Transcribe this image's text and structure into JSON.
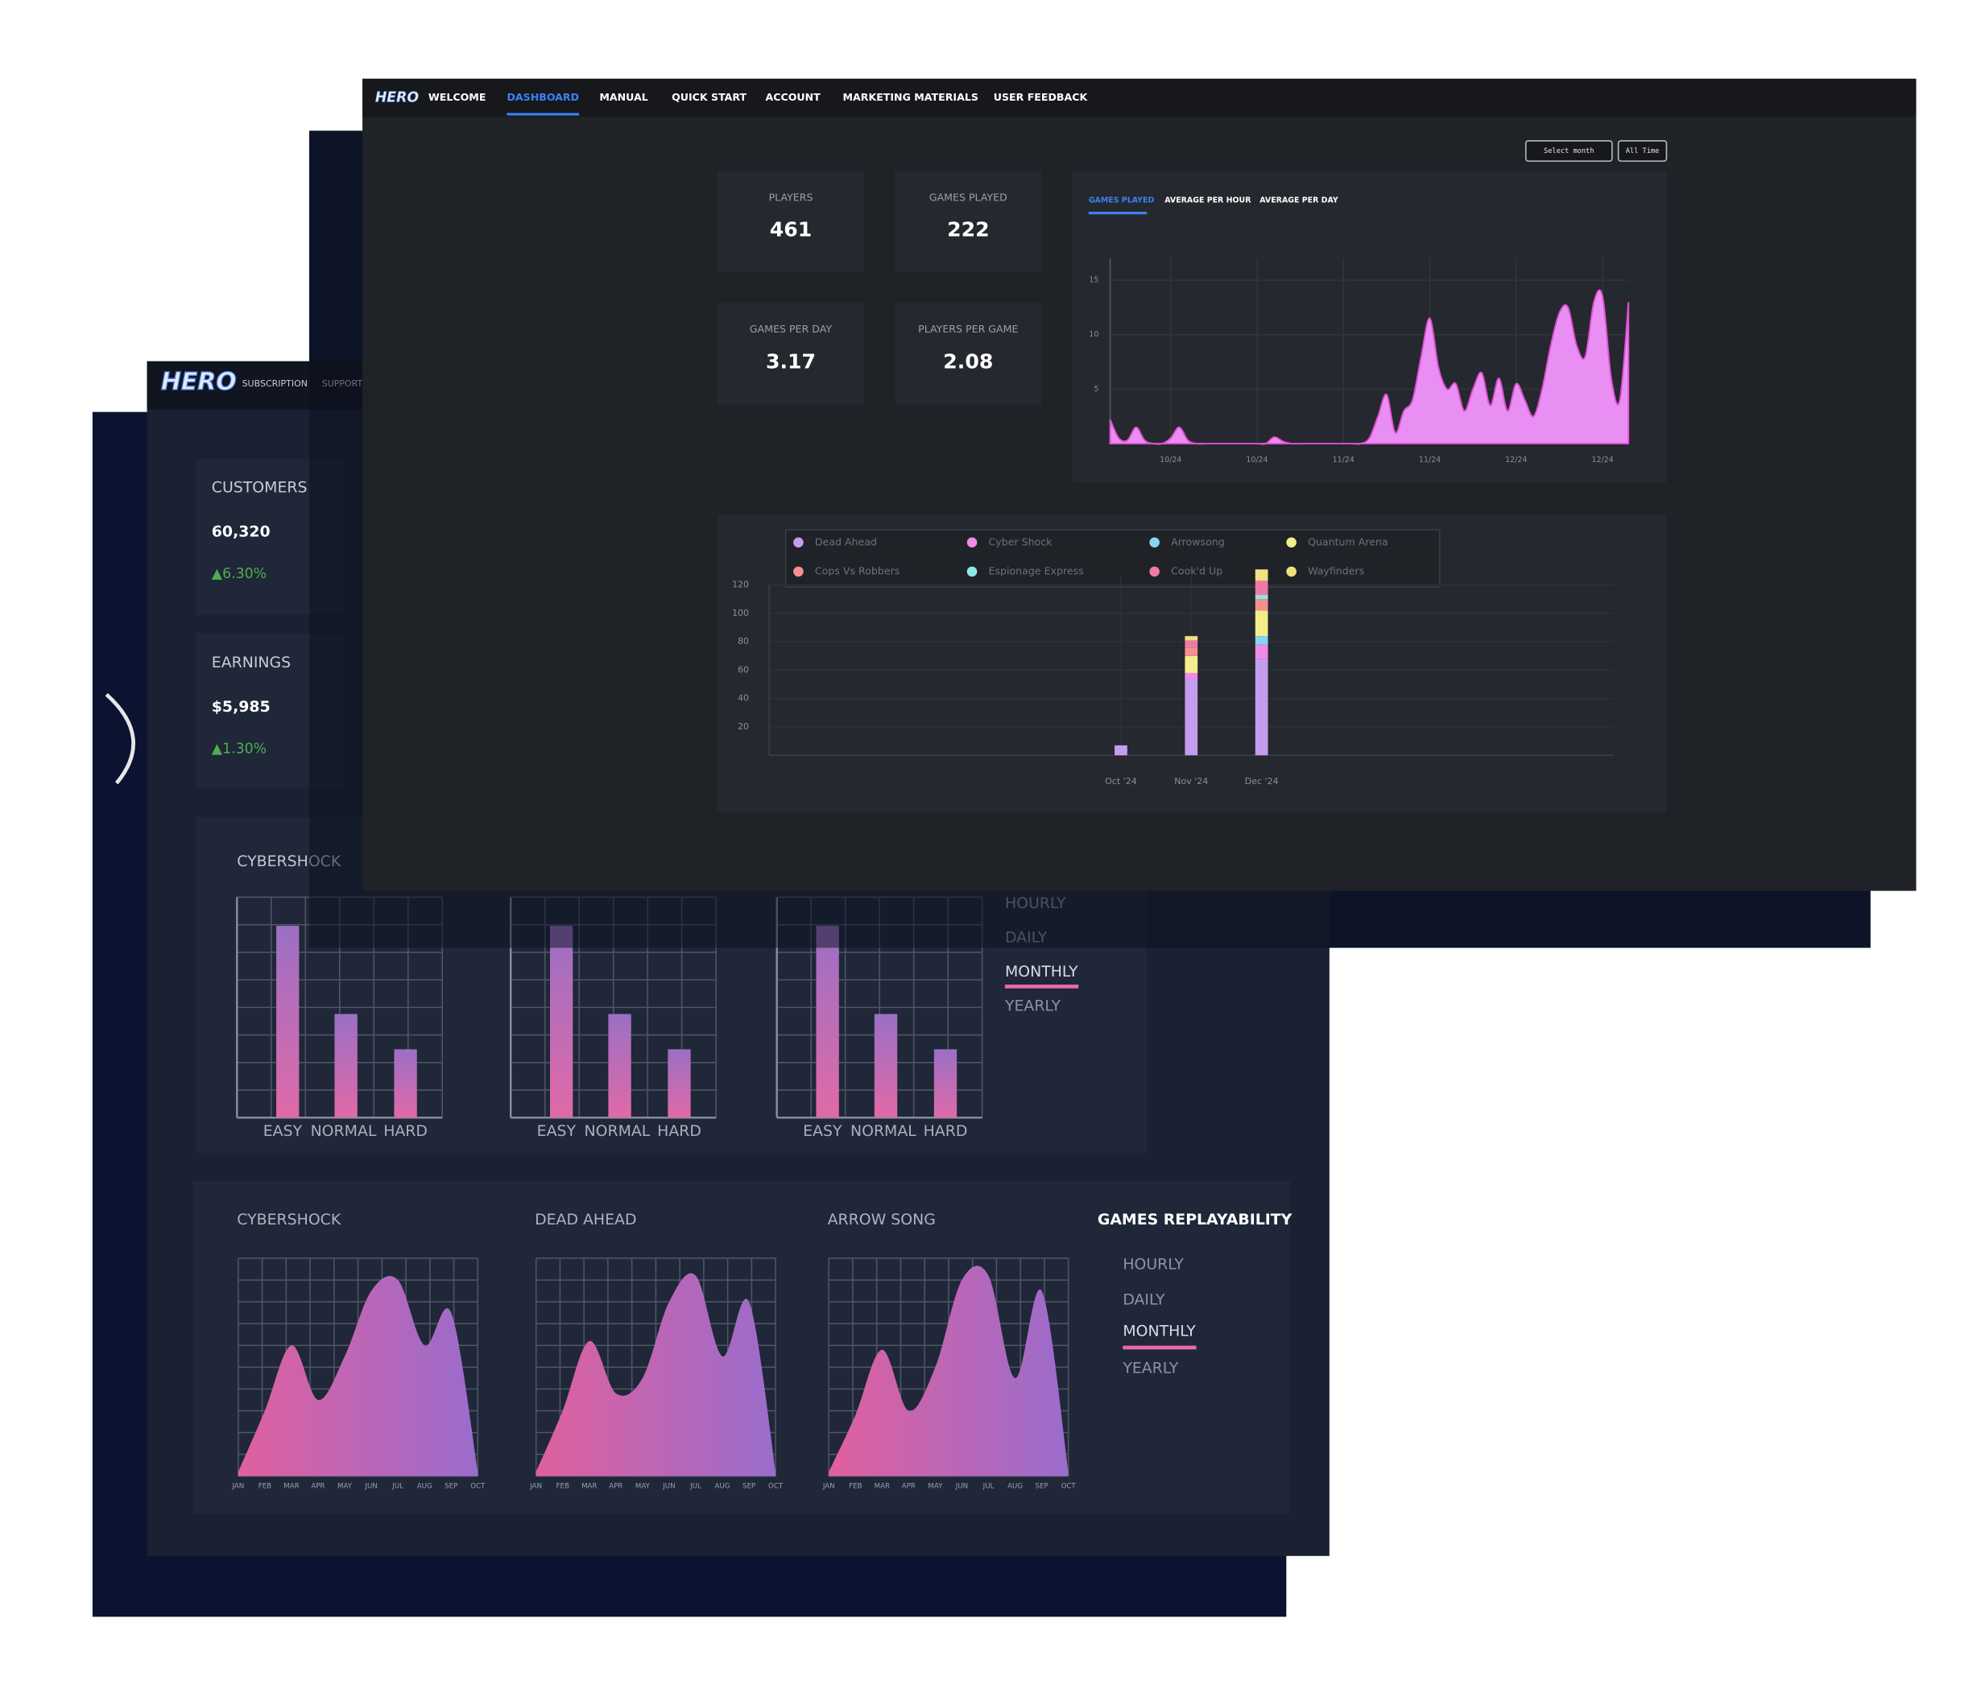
{
  "back_dashboard": {
    "nav": {
      "logo": "HERO",
      "items": [
        "SUBSCRIPTION",
        "SUPPORT"
      ]
    },
    "cards": [
      {
        "label": "CUSTOMERS",
        "value": "60,320",
        "change": "▲6.30%"
      },
      {
        "label": "EARNINGS",
        "value": "$5,985",
        "change": "▲1.30%"
      }
    ],
    "difficulty": {
      "type": "bar",
      "title": "CYBERSHOCK",
      "categories": [
        "EASY",
        "NORMAL",
        "HARD"
      ],
      "ylim": [
        0,
        10
      ],
      "charts": [
        {
          "values": [
            8.7,
            4.7,
            3.1
          ]
        },
        {
          "values": [
            8.7,
            4.7,
            3.1
          ]
        },
        {
          "values": [
            8.7,
            4.7,
            3.1
          ]
        }
      ],
      "periods": [
        "HOURLY",
        "DAILY",
        "MONTHLY",
        "YEARLY"
      ],
      "selected_period": 2
    },
    "replayability": {
      "type": "area",
      "title": "GAMES REPLAYABILITY",
      "months": [
        "JAN",
        "FEB",
        "MAR",
        "APR",
        "MAY",
        "JUN",
        "JUL",
        "AUG",
        "SEP",
        "OCT"
      ],
      "ylim": [
        0,
        100
      ],
      "charts": [
        {
          "name": "CYBERSHOCK",
          "values": [
            2,
            30,
            60,
            35,
            55,
            85,
            90,
            60,
            75,
            2
          ]
        },
        {
          "name": "DEAD AHEAD",
          "values": [
            2,
            30,
            62,
            38,
            45,
            80,
            92,
            55,
            80,
            2
          ]
        },
        {
          "name": "ARROW SONG",
          "values": [
            2,
            28,
            58,
            30,
            50,
            90,
            92,
            45,
            85,
            2
          ]
        }
      ],
      "periods": [
        "HOURLY",
        "DAILY",
        "MONTHLY",
        "YEARLY"
      ],
      "selected_period": 2
    }
  },
  "dashboard": {
    "nav": {
      "logo": "HERO",
      "items": [
        "WELCOME",
        "DASHBOARD",
        "MANUAL",
        "QUICK START",
        "ACCOUNT",
        "MARKETING MATERIALS",
        "USER FEEDBACK"
      ],
      "active_item": 1
    },
    "filters": [
      "Select month",
      "All Time"
    ],
    "kpis": [
      {
        "label": "PLAYERS",
        "value": 461
      },
      {
        "label": "GAMES PLAYED",
        "value": 222
      },
      {
        "label": "GAMES PER DAY",
        "value": 3.17
      },
      {
        "label": "PLAYERS PER GAME",
        "value": 2.08
      }
    ],
    "games_chart": {
      "type": "area",
      "tabs": [
        "GAMES PLAYED",
        "AVERAGE PER HOUR",
        "AVERAGE PER DAY"
      ],
      "active_tab": 0,
      "color": "#e98ef3",
      "x": [
        0,
        1,
        2,
        3,
        4,
        5,
        6,
        7,
        8,
        9,
        10,
        11,
        12,
        13,
        14,
        15,
        16,
        17,
        18,
        19,
        20,
        21,
        22,
        23,
        24,
        25,
        26,
        27,
        28,
        29,
        30,
        31,
        32,
        33,
        34,
        35,
        36,
        37,
        38,
        39,
        40,
        41,
        42,
        43,
        44,
        45,
        46,
        47,
        48,
        49,
        50,
        51,
        52,
        53,
        54,
        55,
        56,
        57,
        58,
        59,
        60
      ],
      "values": [
        2.2,
        0.5,
        0.3,
        1.5,
        0.3,
        0,
        0,
        0.5,
        1.5,
        0.3,
        0,
        0,
        0,
        0,
        0,
        0,
        0,
        0,
        0,
        0.6,
        0.2,
        0,
        0,
        0,
        0,
        0,
        0,
        0,
        0,
        0,
        0.5,
        2.5,
        4.5,
        1,
        3,
        4,
        8,
        11.5,
        7,
        5,
        5.5,
        3,
        5,
        6.5,
        3.5,
        6,
        3,
        5.5,
        4,
        2.5,
        5,
        9,
        12,
        12.5,
        9,
        8,
        13,
        13.5,
        6,
        4,
        13
      ],
      "xlim": [
        0,
        60
      ],
      "xticks": [
        {
          "value": 7,
          "label": "10/24"
        },
        {
          "value": 17,
          "label": "10/24"
        },
        {
          "value": 27,
          "label": "11/24"
        },
        {
          "value": 37,
          "label": "11/24"
        },
        {
          "value": 47,
          "label": "12/24"
        },
        {
          "value": 57,
          "label": "12/24"
        }
      ],
      "ylim": [
        0,
        17
      ],
      "yticks": [
        5,
        10,
        15
      ]
    },
    "stacked_chart": {
      "type": "stacked_bar",
      "categories": [
        null,
        null,
        null,
        null,
        null,
        "Oct '24",
        "Nov '24",
        "Dec '24",
        null,
        null,
        null,
        null,
        null
      ],
      "ylim": [
        0,
        135
      ],
      "yticks": [
        20,
        40,
        60,
        80,
        100,
        120
      ],
      "series": [
        {
          "name": "Dead Ahead",
          "color": "#c59cf0",
          "values": [
            0,
            0,
            0,
            0,
            0,
            7,
            54,
            68,
            0,
            0,
            0,
            0,
            0
          ]
        },
        {
          "name": "Cyber Shock",
          "color": "#f08ae6",
          "values": [
            0,
            0,
            0,
            0,
            0,
            0,
            4,
            10,
            0,
            0,
            0,
            0,
            0
          ]
        },
        {
          "name": "Arrowsong",
          "color": "#86d6f0",
          "values": [
            0,
            0,
            0,
            0,
            0,
            0,
            0,
            6,
            0,
            0,
            0,
            0,
            0
          ]
        },
        {
          "name": "Quantum Arena",
          "color": "#f2ee8c",
          "values": [
            0,
            0,
            0,
            0,
            0,
            0,
            12,
            18,
            0,
            0,
            0,
            0,
            0
          ]
        },
        {
          "name": "Cops Vs Robbers",
          "color": "#f58f8f",
          "values": [
            0,
            0,
            0,
            0,
            0,
            0,
            6,
            8,
            0,
            0,
            0,
            0,
            0
          ]
        },
        {
          "name": "Espionage Express",
          "color": "#8ee8e4",
          "values": [
            0,
            0,
            0,
            0,
            0,
            0,
            0,
            3,
            0,
            0,
            0,
            0,
            0
          ]
        },
        {
          "name": "Cook'd Up",
          "color": "#f07aa6",
          "values": [
            0,
            0,
            0,
            0,
            0,
            0,
            5,
            10,
            0,
            0,
            0,
            0,
            0
          ]
        },
        {
          "name": "Wayfinders",
          "color": "#f0e27e",
          "values": [
            0,
            0,
            0,
            0,
            0,
            0,
            3,
            8,
            0,
            0,
            0,
            0,
            0
          ]
        }
      ]
    }
  }
}
